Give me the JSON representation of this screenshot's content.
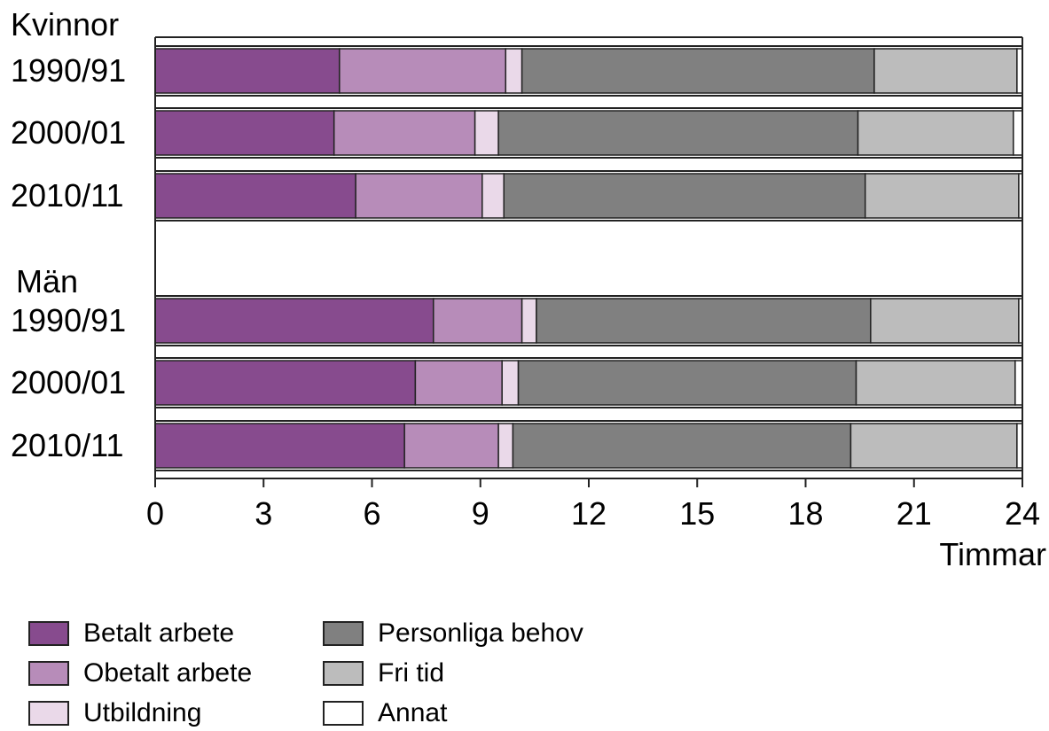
{
  "chart_data": {
    "type": "bar",
    "orientation": "horizontal",
    "stacked": true,
    "xlabel": "Timmar",
    "xlim": [
      0,
      24
    ],
    "xticks": [
      0,
      3,
      6,
      9,
      12,
      15,
      18,
      21,
      24
    ],
    "groups": [
      {
        "name": "Kvinnor",
        "categories": [
          "1990/91",
          "2000/01",
          "2010/11"
        ]
      },
      {
        "name": "Män",
        "categories": [
          "1990/91",
          "2000/01",
          "2010/11"
        ]
      }
    ],
    "categories": [
      "1990/91",
      "2000/01",
      "2010/11",
      "1990/91",
      "2000/01",
      "2010/11"
    ],
    "series": [
      {
        "name": "Betalt arbete",
        "color": "#874b8e",
        "values": [
          5.1,
          4.95,
          5.55,
          7.7,
          7.2,
          6.9
        ]
      },
      {
        "name": "Obetalt arbete",
        "color": "#b78cb9",
        "values": [
          4.6,
          3.9,
          3.5,
          2.45,
          2.4,
          2.6
        ]
      },
      {
        "name": "Utbildning",
        "color": "#ead9e9",
        "values": [
          0.45,
          0.65,
          0.6,
          0.4,
          0.45,
          0.4
        ]
      },
      {
        "name": "Personliga behov",
        "color": "#808080",
        "values": [
          9.75,
          9.95,
          10.0,
          9.25,
          9.35,
          9.35
        ]
      },
      {
        "name": "Fri tid",
        "color": "#bcbcbc",
        "values": [
          3.95,
          4.3,
          4.25,
          4.1,
          4.4,
          4.6
        ]
      },
      {
        "name": "Annat",
        "color": "#ffffff",
        "values": [
          0.15,
          0.25,
          0.1,
          0.1,
          0.2,
          0.15
        ]
      }
    ],
    "legend_position": "bottom-left",
    "grid": false
  }
}
